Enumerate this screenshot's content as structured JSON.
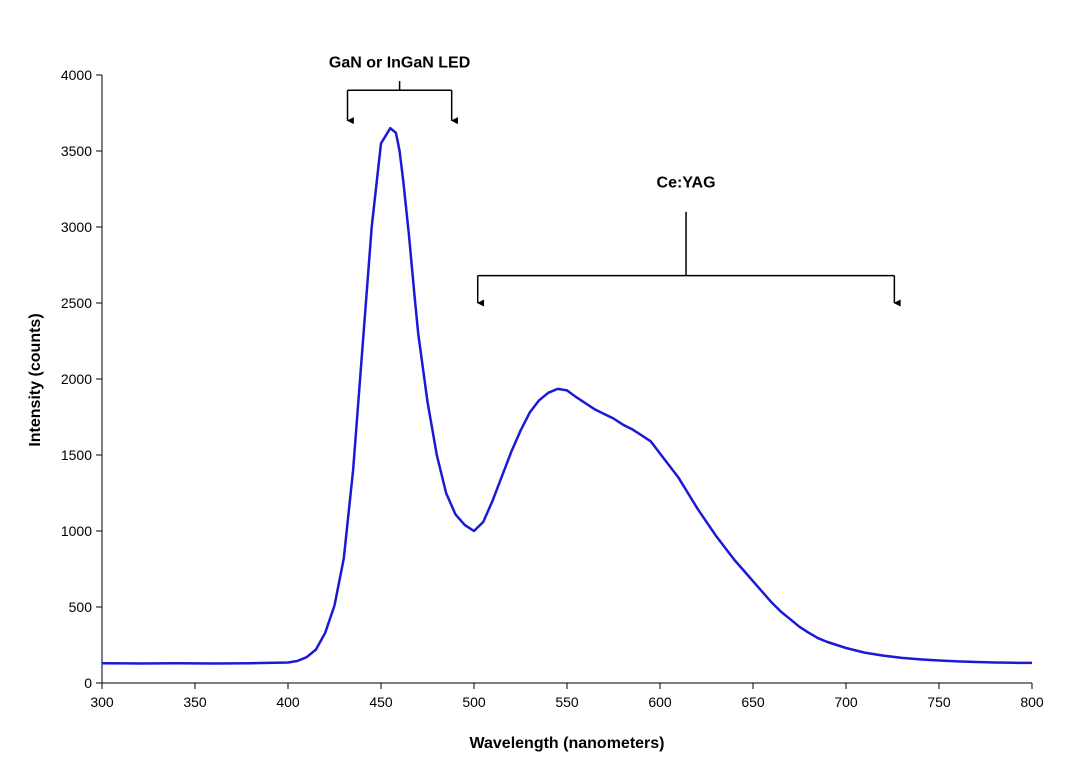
{
  "chart_data": {
    "type": "line",
    "title": "",
    "xlabel": "Wavelength (nanometers)",
    "ylabel": "Intensity (counts)",
    "xlim": [
      300,
      800
    ],
    "ylim": [
      0,
      4000
    ],
    "xticks": [
      300,
      350,
      400,
      450,
      500,
      550,
      600,
      650,
      700,
      750,
      800
    ],
    "yticks": [
      0,
      500,
      1000,
      1500,
      2000,
      2500,
      3000,
      3500,
      4000
    ],
    "grid": false,
    "legend": "none",
    "series": [
      {
        "color": "#1a1ad6",
        "x": [
          300,
          320,
          340,
          360,
          380,
          400,
          405,
          410,
          415,
          420,
          425,
          430,
          435,
          440,
          445,
          450,
          455,
          458,
          460,
          462,
          465,
          468,
          470,
          475,
          480,
          485,
          490,
          495,
          500,
          505,
          510,
          515,
          520,
          525,
          530,
          535,
          540,
          545,
          550,
          555,
          560,
          565,
          570,
          575,
          580,
          585,
          590,
          595,
          600,
          605,
          610,
          615,
          620,
          625,
          630,
          635,
          640,
          645,
          650,
          655,
          660,
          665,
          670,
          675,
          680,
          685,
          690,
          700,
          710,
          720,
          730,
          740,
          750,
          760,
          770,
          780,
          790,
          800
        ],
        "y": [
          130,
          128,
          130,
          128,
          130,
          135,
          145,
          170,
          220,
          330,
          510,
          820,
          1400,
          2200,
          3000,
          3550,
          3650,
          3620,
          3500,
          3300,
          2950,
          2550,
          2300,
          1850,
          1500,
          1250,
          1110,
          1040,
          1000,
          1060,
          1200,
          1360,
          1520,
          1660,
          1780,
          1860,
          1910,
          1935,
          1925,
          1880,
          1840,
          1800,
          1770,
          1740,
          1700,
          1670,
          1630,
          1590,
          1510,
          1430,
          1350,
          1250,
          1150,
          1060,
          970,
          890,
          810,
          740,
          670,
          600,
          530,
          470,
          420,
          370,
          330,
          295,
          270,
          230,
          200,
          180,
          165,
          155,
          148,
          142,
          138,
          135,
          133,
          132
        ]
      }
    ],
    "annotations": [
      {
        "text": "GaN or InGaN  LED",
        "x_start": 432,
        "x_end": 488,
        "y_bar": 3900,
        "y_arrow_end": 3700,
        "y_stem_top": 3960,
        "text_y": 4050
      },
      {
        "text": "Ce:YAG",
        "x_start": 502,
        "x_end": 726,
        "y_bar": 2680,
        "y_arrow_end": 2500,
        "y_stem_top": 3100,
        "text_y": 3260
      }
    ]
  }
}
